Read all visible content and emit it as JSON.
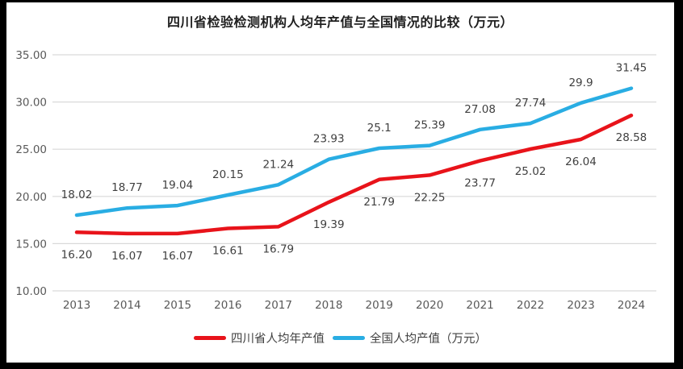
{
  "chart_data": {
    "type": "line",
    "title": "四川省检验检测机构人均年产值与全国情况的比较（万元）",
    "x": [
      "2013",
      "2014",
      "2015",
      "2016",
      "2017",
      "2018",
      "2019",
      "2020",
      "2021",
      "2022",
      "2023",
      "2024"
    ],
    "series": [
      {
        "name": "四川省人均年产值",
        "color": "#e8131a",
        "values": [
          16.2,
          16.07,
          16.07,
          16.61,
          16.79,
          19.39,
          21.79,
          22.25,
          23.77,
          25.02,
          26.04,
          28.58
        ],
        "labels": [
          "16.20",
          "16.07",
          "16.07",
          "16.61",
          "16.79",
          "19.39",
          "21.79",
          "22.25",
          "23.77",
          "25.02",
          "26.04",
          "28.58"
        ],
        "label_position": "below"
      },
      {
        "name": "全国人均产值（万元）",
        "color": "#29ade3",
        "values": [
          18.02,
          18.77,
          19.04,
          20.15,
          21.24,
          23.93,
          25.1,
          25.39,
          27.08,
          27.74,
          29.9,
          31.45
        ],
        "labels": [
          "18.02",
          "18.77",
          "19.04",
          "20.15",
          "21.24",
          "23.93",
          "25.1",
          "25.39",
          "27.08",
          "27.74",
          "29.9",
          "31.45"
        ],
        "label_position": "above"
      }
    ],
    "ylim": [
      10,
      35
    ],
    "ytick_step": 5,
    "yticks": [
      {
        "value": 10,
        "label": "10.00"
      },
      {
        "value": 15,
        "label": "15.00"
      },
      {
        "value": 20,
        "label": "20.00"
      },
      {
        "value": 25,
        "label": "25.00"
      },
      {
        "value": 30,
        "label": "30.00"
      },
      {
        "value": 35,
        "label": "35.00"
      }
    ],
    "grid": true,
    "gridline_color": "#d9d9d9",
    "legend_position": "bottom"
  },
  "frame": {
    "border_color": "#000000",
    "background_color": "#ffffff"
  }
}
